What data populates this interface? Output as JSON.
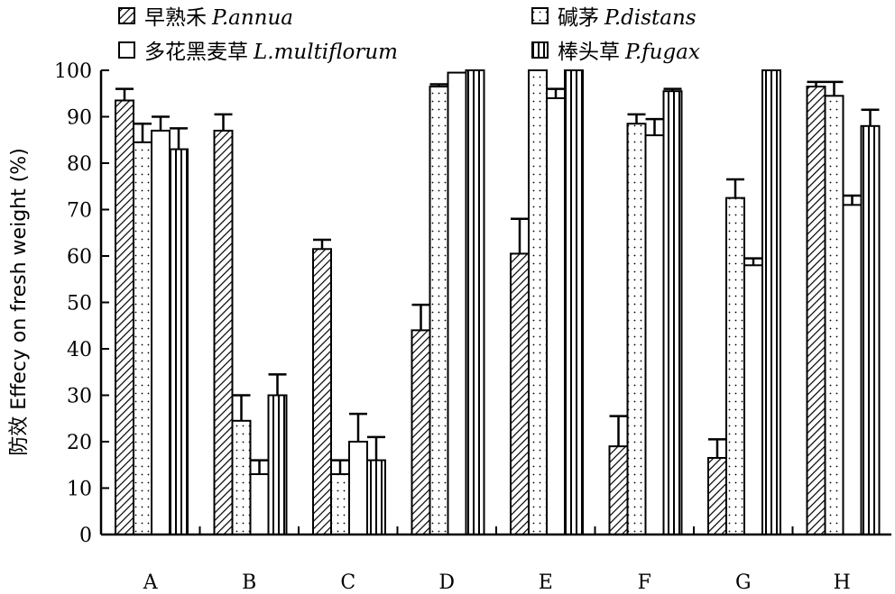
{
  "chart_data": {
    "type": "bar",
    "ylabel": "防效 Effecy on fresh weight (%)",
    "xlabel": "",
    "ylim": [
      0,
      100
    ],
    "yticks": [
      0,
      10,
      20,
      30,
      40,
      50,
      60,
      70,
      80,
      90,
      100
    ],
    "categories": [
      "A",
      "B",
      "C",
      "D",
      "E",
      "F",
      "G",
      "H"
    ],
    "legend_placement": "top",
    "series": [
      {
        "name_cn": "早熟禾",
        "name_latin": "P.annua",
        "pattern": "diagonal-hatch",
        "values": [
          93.5,
          87,
          61.5,
          44,
          60.5,
          19,
          16.5,
          96.5
        ],
        "errors": [
          2.5,
          3.5,
          2,
          5.5,
          7.5,
          6.5,
          4,
          1
        ]
      },
      {
        "name_cn": "碱茅",
        "name_latin": "P.distans",
        "pattern": "dots",
        "values": [
          84.5,
          24.5,
          13,
          96.5,
          100,
          88.5,
          72.5,
          94.5
        ],
        "errors": [
          4,
          5.5,
          3,
          0.5,
          0,
          2,
          4,
          3
        ]
      },
      {
        "name_cn": "多花黑麦草",
        "name_latin": "L.multiflorum",
        "pattern": "blank",
        "values": [
          87,
          13,
          20,
          99.5,
          94,
          86,
          58,
          71
        ],
        "errors": [
          3,
          3,
          6,
          0,
          2,
          3.5,
          1.5,
          2
        ]
      },
      {
        "name_cn": "棒头草",
        "name_latin": "P.fugax",
        "pattern": "vertical-lines",
        "values": [
          83,
          30,
          16,
          100,
          100,
          95.5,
          100,
          88
        ],
        "errors": [
          4.5,
          4.5,
          5,
          0,
          0,
          0.5,
          0,
          3.5
        ]
      }
    ]
  }
}
